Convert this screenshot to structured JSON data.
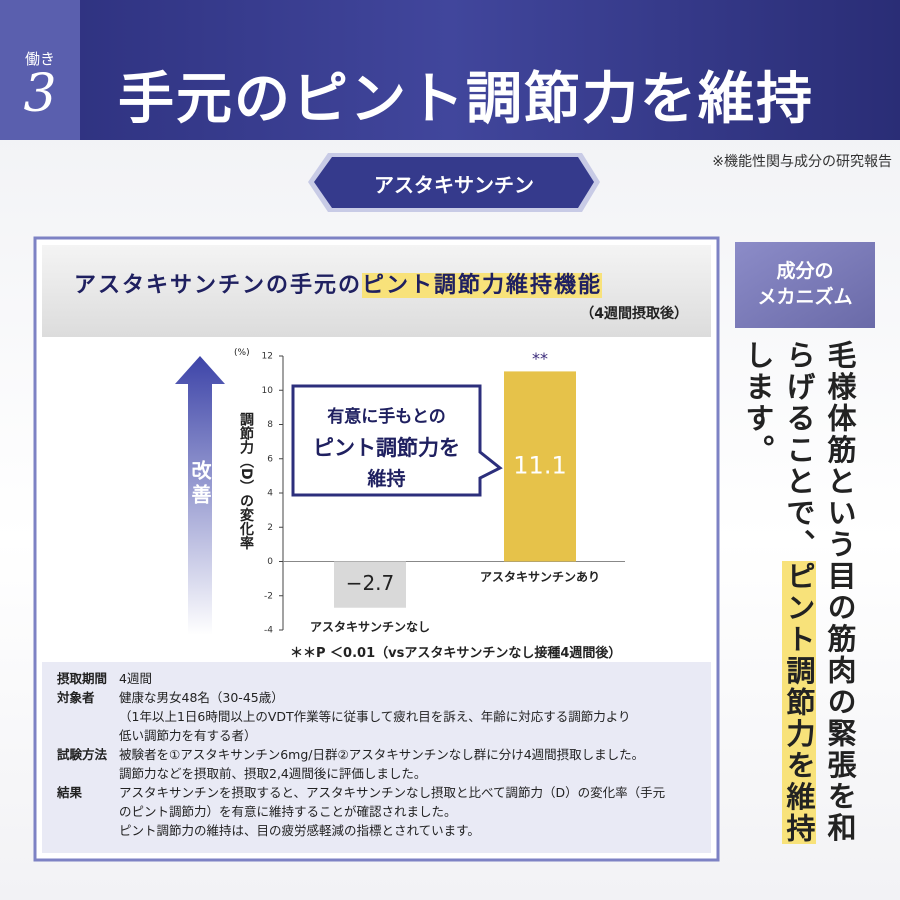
{
  "header": {
    "badge_label": "働き",
    "badge_number": "3",
    "title": "手元のピント調節力を維持",
    "note": "※機能性関与成分の研究報告",
    "ribbon": "アスタキサンチン"
  },
  "panel": {
    "title": "アスタキサンチンの手元の",
    "title_highlight": "ピント調節力維持機能",
    "subtitle": "（4週間摂取後）",
    "arrow_label": "改善",
    "callout": [
      "有意に手もとの",
      "ピント調節力を",
      "維持"
    ],
    "footnote": "＊＊P ＜0.01（vsアスタキサンチンなし接種4週間後）"
  },
  "chart_data": {
    "type": "bar",
    "y_label": "調節力（D）の変化率",
    "y_unit": "(%)",
    "categories": [
      "アスタキサンチンなし",
      "アスタキサンチンあり"
    ],
    "values": [
      -2.7,
      11.1
    ],
    "value_labels": [
      "−2.7",
      "11.1"
    ],
    "colors": [
      "#d9d9d9",
      "#e6c24a"
    ],
    "value_label_colors": [
      "#222222",
      "#ffffff"
    ],
    "significance": [
      "",
      "**"
    ],
    "ylim": [
      -4,
      12
    ],
    "yticks": [
      -4,
      -2,
      0,
      2,
      4,
      6,
      8,
      10,
      12
    ],
    "grid": false
  },
  "table": {
    "rows": [
      {
        "label": "摂取期間",
        "lines": [
          "4週間"
        ]
      },
      {
        "label": "対象者",
        "lines": [
          "健康な男女48名（30-45歳）",
          "（1年以上1日6時間以上のVDT作業等に従事して疲れ目を訴え、年齢に対応する調節力より",
          "低い調節力を有する者）"
        ]
      },
      {
        "label": "試験方法",
        "lines": [
          "被験者を①アスタキサンチン6mg/日群②アスタキサンチンなし群に分け4週間摂取しました。",
          "調節力などを摂取前、摂取2,4週間後に評価しました。"
        ]
      },
      {
        "label": "結果",
        "lines": [
          "アスタキサンチンを摂取すると、アスタキサンチンなし摂取と比べて調節力（D）の変化率（手元",
          "のピント調節力）を有意に維持することが確認されました。",
          "ピント調節力の維持は、目の疲労感軽減の指標とされています。"
        ]
      }
    ]
  },
  "sidebar": {
    "heading": [
      "成分の",
      "メカニズム"
    ],
    "text": "毛様体筋という目の筋肉の緊張を和らげることで、",
    "highlight": "ピント調節力を維持",
    "text_end": "します。"
  }
}
